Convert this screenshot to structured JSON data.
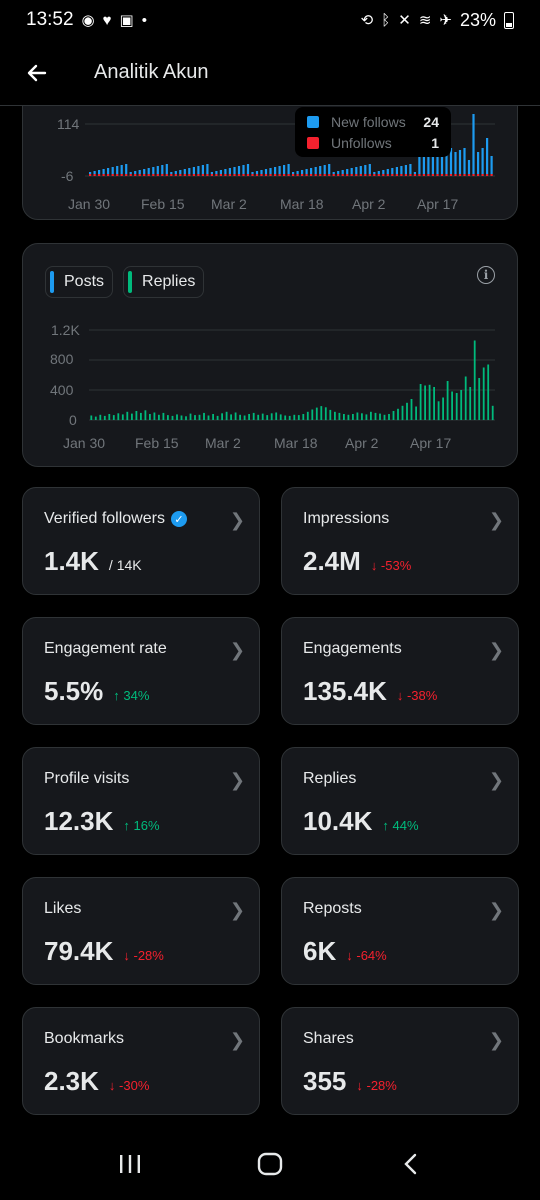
{
  "status": {
    "time": "13:52",
    "battery": "23%"
  },
  "header": {
    "title": "Analitik Akun"
  },
  "follows_chart": {
    "tooltip": [
      {
        "label": "New follows",
        "value": "24",
        "color": "#1d9bf0"
      },
      {
        "label": "Unfollows",
        "value": "1",
        "color": "#f4212e"
      }
    ],
    "y_ticks": [
      "114",
      "-6"
    ],
    "x_ticks": [
      "Jan 30",
      "Feb 15",
      "Mar 2",
      "Mar 18",
      "Apr 2",
      "Apr 17"
    ]
  },
  "chart_data": {
    "type": "bar",
    "legend": [
      "Posts",
      "Replies"
    ],
    "colors": {
      "Posts": "#1d9bf0",
      "Replies": "#00ba7c"
    },
    "ylim": [
      0,
      1200
    ],
    "y_ticks": [
      "1.2K",
      "800",
      "400",
      "0"
    ],
    "x_ticks": [
      "Jan 30",
      "Feb 15",
      "Mar 2",
      "Mar 18",
      "Apr 2",
      "Apr 17"
    ],
    "series": [
      {
        "name": "Replies",
        "values": [
          60,
          45,
          70,
          55,
          80,
          65,
          90,
          75,
          110,
          85,
          120,
          95,
          130,
          80,
          100,
          70,
          95,
          65,
          55,
          75,
          60,
          50,
          85,
          65,
          70,
          95,
          60,
          80,
          55,
          90,
          110,
          75,
          100,
          70,
          60,
          80,
          95,
          70,
          85,
          65,
          90,
          100,
          75,
          60,
          55,
          70,
          65,
          80,
          110,
          140,
          165,
          185,
          170,
          135,
          110,
          95,
          80,
          70,
          80,
          100,
          90,
          75,
          110,
          95,
          85,
          70,
          80,
          120,
          150,
          190,
          230,
          280,
          180,
          480,
          460,
          470,
          440,
          250,
          300,
          520,
          380,
          360,
          400,
          580,
          440,
          1060,
          560,
          700,
          740,
          190
        ]
      }
    ]
  },
  "stats": [
    {
      "label": "Verified followers",
      "value": "1.4K",
      "sub": "/ 14K",
      "change": "",
      "dir": "none",
      "verified": true
    },
    {
      "label": "Impressions",
      "value": "2.4M",
      "sub": "",
      "change": "↓ -53%",
      "dir": "down"
    },
    {
      "label": "Engagement rate",
      "value": "5.5%",
      "sub": "",
      "change": "↑ 34%",
      "dir": "up"
    },
    {
      "label": "Engagements",
      "value": "135.4K",
      "sub": "",
      "change": "↓ -38%",
      "dir": "down"
    },
    {
      "label": "Profile visits",
      "value": "12.3K",
      "sub": "",
      "change": "↑ 16%",
      "dir": "up"
    },
    {
      "label": "Replies",
      "value": "10.4K",
      "sub": "",
      "change": "↑ 44%",
      "dir": "up"
    },
    {
      "label": "Likes",
      "value": "79.4K",
      "sub": "",
      "change": "↓ -28%",
      "dir": "down"
    },
    {
      "label": "Reposts",
      "value": "6K",
      "sub": "",
      "change": "↓ -64%",
      "dir": "down"
    },
    {
      "label": "Bookmarks",
      "value": "2.3K",
      "sub": "",
      "change": "↓ -30%",
      "dir": "down"
    },
    {
      "label": "Shares",
      "value": "355",
      "sub": "",
      "change": "↓ -28%",
      "dir": "down"
    }
  ]
}
